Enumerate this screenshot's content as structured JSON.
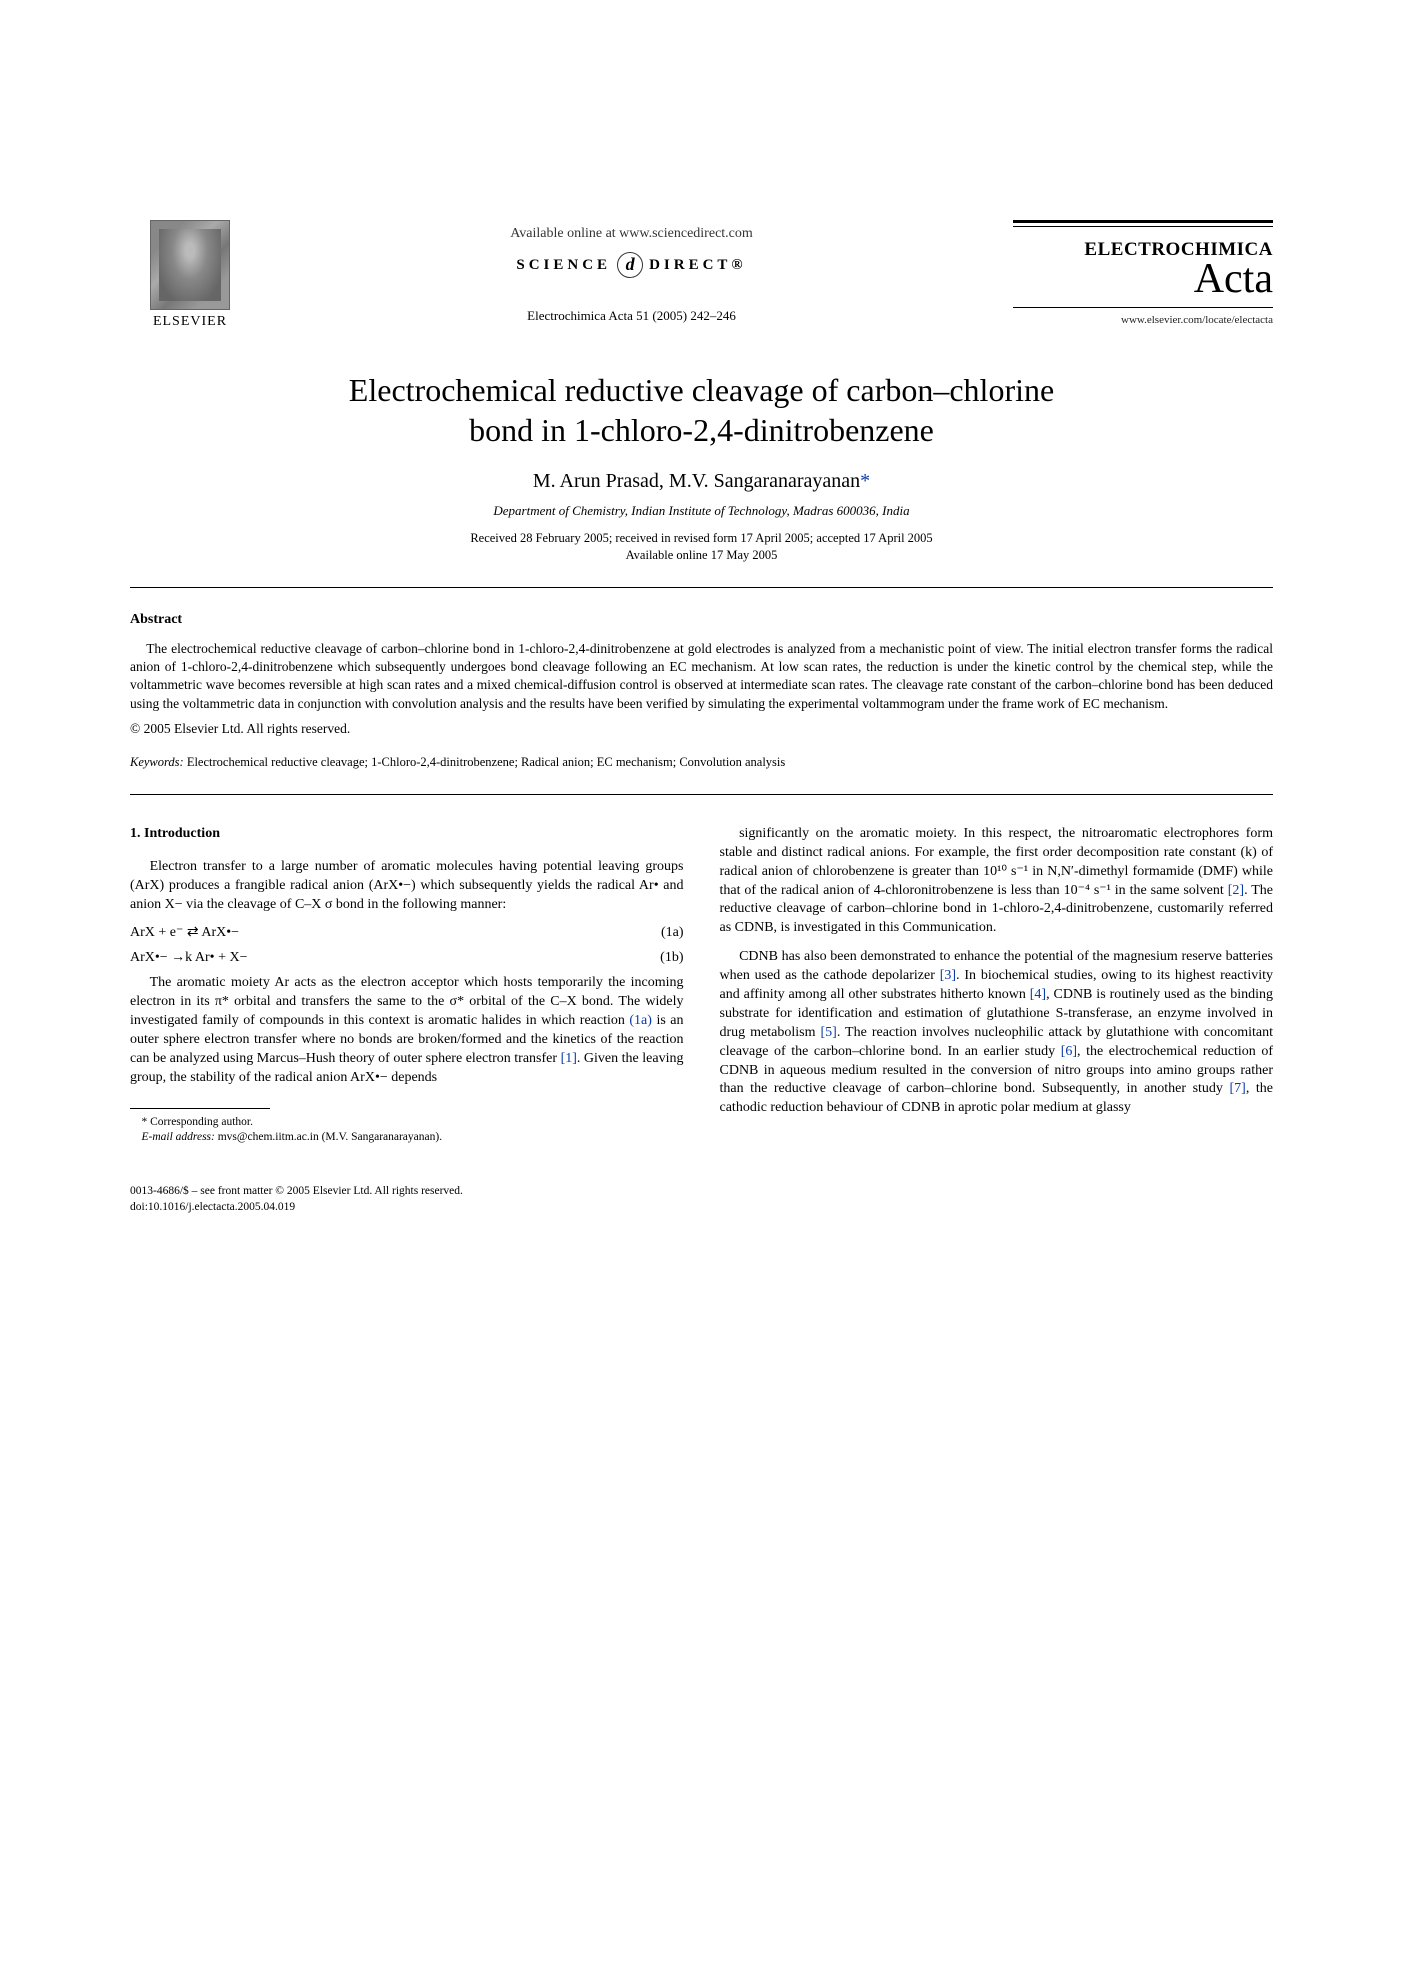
{
  "header": {
    "elsevier_label": "ELSEVIER",
    "available_online": "Available online at www.sciencedirect.com",
    "sd_left": "SCIENCE",
    "sd_right": "DIRECT®",
    "journal_ref": "Electrochimica Acta 51 (2005) 242–246",
    "journal_name_bold": "ELECTROCHIMICA",
    "journal_name_script": "Acta",
    "journal_url": "www.elsevier.com/locate/electacta"
  },
  "title_lines": {
    "l1": "Electrochemical reductive cleavage of carbon–chlorine",
    "l2": "bond in 1-chloro-2,4-dinitrobenzene"
  },
  "authors": "M. Arun Prasad, M.V. Sangaranarayanan",
  "author_star": "*",
  "affiliation": "Department of Chemistry, Indian Institute of Technology, Madras 600036, India",
  "dates_l1": "Received 28 February 2005; received in revised form 17 April 2005; accepted 17 April 2005",
  "dates_l2": "Available online 17 May 2005",
  "abstract": {
    "head": "Abstract",
    "body": "The electrochemical reductive cleavage of carbon–chlorine bond in 1-chloro-2,4-dinitrobenzene at gold electrodes is analyzed from a mechanistic point of view. The initial electron transfer forms the radical anion of 1-chloro-2,4-dinitrobenzene which subsequently undergoes bond cleavage following an EC mechanism. At low scan rates, the reduction is under the kinetic control by the chemical step, while the voltammetric wave becomes reversible at high scan rates and a mixed chemical-diffusion control is observed at intermediate scan rates. The cleavage rate constant of the carbon–chlorine bond has been deduced using the voltammetric data in conjunction with convolution analysis and the results have been verified by simulating the experimental voltammogram under the frame work of EC mechanism.",
    "copyright": "© 2005 Elsevier Ltd. All rights reserved."
  },
  "keywords": {
    "label": "Keywords:",
    "text": "  Electrochemical reductive cleavage; 1-Chloro-2,4-dinitrobenzene; Radical anion; EC mechanism; Convolution analysis"
  },
  "section1": {
    "head": "1. Introduction",
    "p1": "Electron transfer to a large number of aromatic molecules having potential leaving groups (ArX) produces a frangible radical anion (ArX•−) which subsequently yields the radical Ar• and anion X− via the cleavage of C–X σ bond in the following manner:",
    "eq1a": "ArX + e⁻ ⇄ ArX•−",
    "eq1a_num": "(1a)",
    "eq1b": "ArX•−  →k  Ar• + X−",
    "eq1b_num": "(1b)",
    "p2a": "The aromatic moiety Ar acts as the electron acceptor which hosts temporarily the incoming electron in its π* orbital and transfers the same to the σ* orbital of the C–X bond. The widely investigated family of compounds in this context is aromatic halides in which reaction ",
    "link_1a": "(1a)",
    "p2b": " is an outer sphere electron transfer where no bonds are broken/formed and the kinetics of the reaction can be analyzed using Marcus–Hush theory of outer sphere electron transfer ",
    "link_1": "[1]",
    "p2c": ". Given the leaving group, the stability of the radical anion ArX•− depends",
    "p3a": "significantly on the aromatic moiety. In this respect, the nitroaromatic electrophores form stable and distinct radical anions. For example, the first order decomposition rate constant (k) of radical anion of chlorobenzene is greater than 10¹⁰ s⁻¹ in N,N′-dimethyl formamide (DMF) while that of the radical anion of 4-chloronitrobenzene is less than 10⁻⁴ s⁻¹ in the same solvent ",
    "link_2": "[2]",
    "p3b": ". The reductive cleavage of carbon–chlorine bond in 1-chloro-2,4-dinitrobenzene, customarily referred as CDNB, is investigated in this Communication.",
    "p4a": "CDNB has also been demonstrated to enhance the potential of the magnesium reserve batteries when used as the cathode depolarizer ",
    "link_3": "[3]",
    "p4b": ". In biochemical studies, owing to its highest reactivity and affinity among all other substrates hitherto known ",
    "link_4": "[4]",
    "p4c": ", CDNB is routinely used as the binding substrate for identification and estimation of glutathione S-transferase, an enzyme involved in drug metabolism ",
    "link_5": "[5]",
    "p4d": ". The reaction involves nucleophilic attack by glutathione with concomitant cleavage of the carbon–chlorine bond. In an earlier study ",
    "link_6": "[6]",
    "p4e": ", the electrochemical reduction of CDNB in aqueous medium resulted in the conversion of nitro groups into amino groups rather than the reductive cleavage of carbon–chlorine bond. Subsequently, in another study ",
    "link_7": "[7]",
    "p4f": ", the cathodic reduction behaviour of CDNB in aprotic polar medium at glassy"
  },
  "footnotes": {
    "corr": "* Corresponding author.",
    "email_label": "E-mail address:",
    "email_value": " mvs@chem.iitm.ac.in (M.V. Sangaranarayanan)."
  },
  "doi": {
    "line1": "0013-4686/$ – see front matter © 2005 Elsevier Ltd. All rights reserved.",
    "line2": "doi:10.1016/j.electacta.2005.04.019"
  },
  "colors": {
    "link": "#0a3aa8",
    "text": "#000000",
    "bg": "#ffffff"
  }
}
